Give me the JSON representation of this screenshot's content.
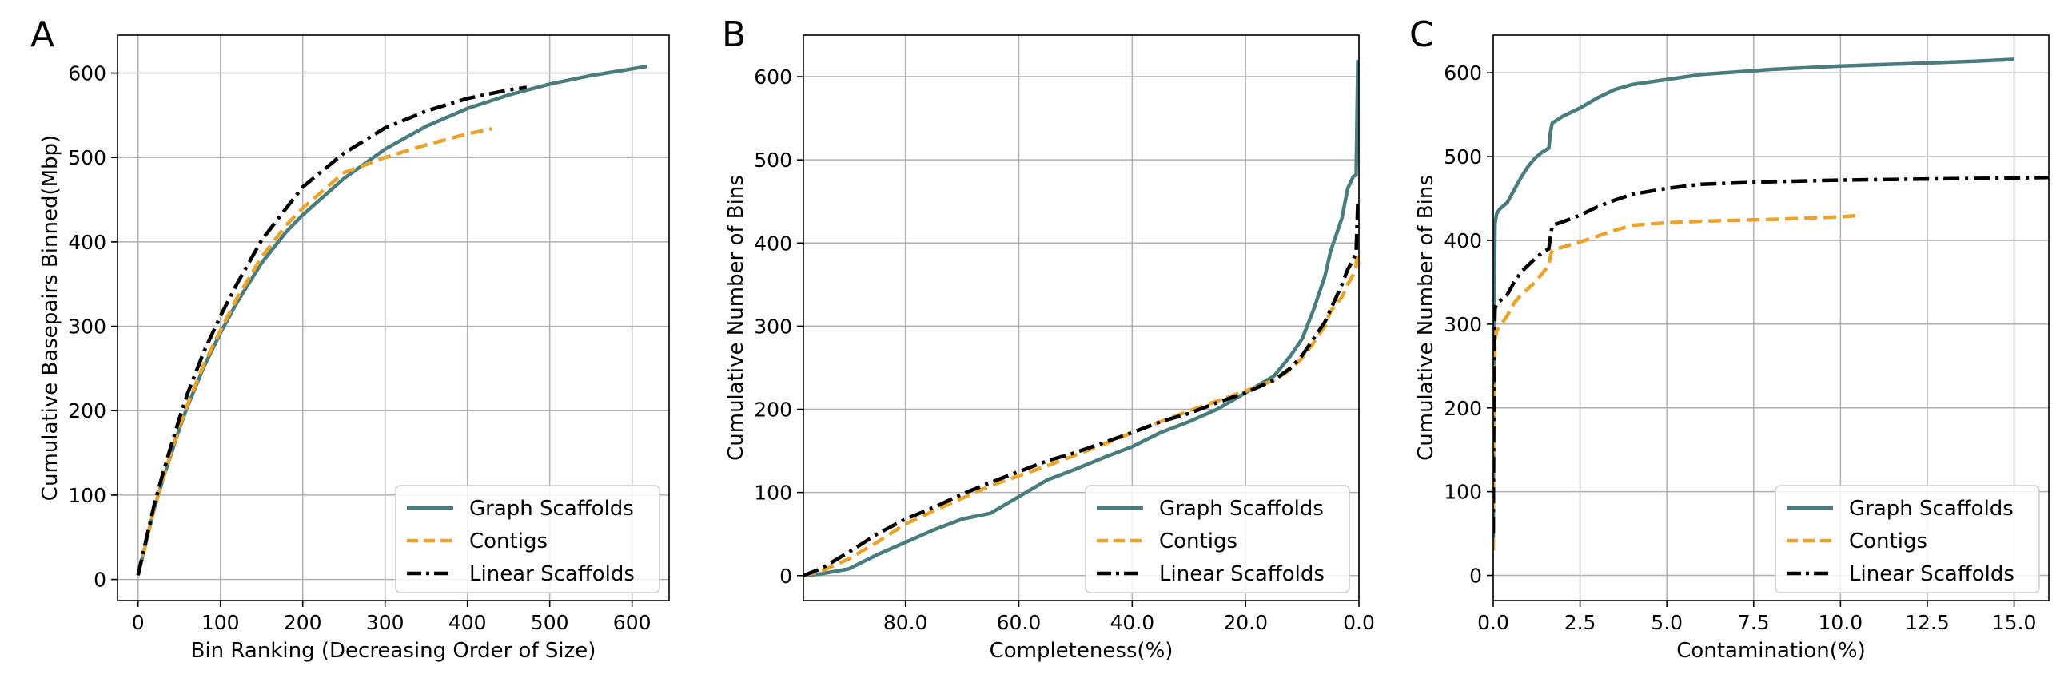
{
  "colors": {
    "graph_scaffolds": "#4a7c7e",
    "contigs": "#e8a42c",
    "linear_scaffolds": "#000000"
  },
  "chart_data": [
    {
      "type": "line",
      "panel_letter": "A",
      "xlabel": "Bin Ranking (Decreasing Order of Size)",
      "ylabel": "Cumulative Basepairs Binned(Mbp)",
      "xlim": [
        -25,
        645
      ],
      "ylim": [
        -25,
        645
      ],
      "xticks": [
        0,
        100,
        200,
        300,
        400,
        500,
        600
      ],
      "xtick_labels": [
        "0",
        "100",
        "200",
        "300",
        "400",
        "500",
        "600"
      ],
      "yticks": [
        0,
        100,
        200,
        300,
        400,
        500,
        600
      ],
      "ytick_labels": [
        "0",
        "100",
        "200",
        "300",
        "400",
        "500",
        "600"
      ],
      "grid": true,
      "legend_position": "lower-right",
      "series": [
        {
          "name": "Graph Scaffolds",
          "key": "graph_scaffolds",
          "style": "solid",
          "x": [
            0,
            10,
            20,
            30,
            40,
            50,
            60,
            80,
            100,
            120,
            150,
            180,
            200,
            250,
            300,
            350,
            400,
            450,
            500,
            550,
            600,
            618
          ],
          "y": [
            5,
            45,
            85,
            118,
            148,
            178,
            205,
            252,
            292,
            328,
            375,
            412,
            432,
            475,
            510,
            537,
            558,
            574,
            587,
            597,
            605,
            608
          ]
        },
        {
          "name": "Contigs",
          "key": "contigs",
          "style": "dashed",
          "x": [
            0,
            10,
            20,
            30,
            40,
            50,
            60,
            80,
            100,
            120,
            150,
            180,
            200,
            250,
            300,
            350,
            400,
            430
          ],
          "y": [
            5,
            45,
            85,
            118,
            150,
            180,
            207,
            255,
            295,
            333,
            382,
            420,
            440,
            482,
            500,
            515,
            528,
            534
          ]
        },
        {
          "name": "Linear Scaffolds",
          "key": "linear_scaffolds",
          "style": "dashdot",
          "x": [
            0,
            10,
            20,
            30,
            40,
            50,
            60,
            80,
            100,
            120,
            150,
            180,
            200,
            250,
            300,
            350,
            400,
            450,
            472
          ],
          "y": [
            5,
            48,
            90,
            125,
            158,
            190,
            220,
            270,
            312,
            350,
            402,
            440,
            465,
            505,
            535,
            555,
            570,
            580,
            583
          ]
        }
      ]
    },
    {
      "type": "line",
      "panel_letter": "B",
      "xlabel": "Completeness(%)",
      "ylabel": "Cumulative Number of Bins",
      "xlim": [
        98,
        0
      ],
      "ylim": [
        -30,
        650
      ],
      "xticks": [
        80,
        60,
        40,
        20,
        0
      ],
      "xtick_labels": [
        "80.0",
        "60.0",
        "40.0",
        "20.0",
        "0.0"
      ],
      "yticks": [
        0,
        100,
        200,
        300,
        400,
        500,
        600
      ],
      "ytick_labels": [
        "0",
        "100",
        "200",
        "300",
        "400",
        "500",
        "600"
      ],
      "grid": true,
      "legend_position": "lower-right",
      "series": [
        {
          "name": "Graph Scaffolds",
          "key": "graph_scaffolds",
          "style": "solid",
          "x": [
            98,
            95,
            90,
            85,
            80,
            75,
            70,
            65,
            60,
            55,
            50,
            45,
            40,
            35,
            30,
            25,
            20,
            15,
            12,
            10,
            8,
            6,
            5,
            3,
            2,
            1,
            0.5,
            0.2
          ],
          "y": [
            0,
            2,
            8,
            25,
            40,
            55,
            68,
            75,
            95,
            115,
            128,
            142,
            155,
            172,
            185,
            200,
            220,
            240,
            265,
            285,
            320,
            360,
            390,
            430,
            465,
            480,
            482,
            620
          ]
        },
        {
          "name": "Contigs",
          "key": "contigs",
          "style": "dashed",
          "x": [
            98,
            95,
            90,
            85,
            80,
            75,
            70,
            65,
            60,
            55,
            50,
            45,
            40,
            35,
            30,
            25,
            20,
            15,
            12,
            10,
            8,
            6,
            5,
            3,
            2,
            1,
            0.5,
            0.2
          ],
          "y": [
            0,
            5,
            20,
            40,
            62,
            78,
            93,
            108,
            120,
            132,
            145,
            158,
            172,
            185,
            198,
            210,
            222,
            235,
            248,
            262,
            280,
            300,
            318,
            335,
            350,
            362,
            372,
            415
          ]
        },
        {
          "name": "Linear Scaffolds",
          "key": "linear_scaffolds",
          "style": "dashdot",
          "x": [
            98,
            95,
            90,
            85,
            80,
            75,
            70,
            65,
            60,
            55,
            50,
            45,
            40,
            35,
            30,
            25,
            20,
            15,
            12,
            10,
            8,
            6,
            5,
            3,
            2,
            1,
            0.5,
            0.2
          ],
          "y": [
            0,
            8,
            28,
            50,
            68,
            82,
            98,
            112,
            125,
            138,
            148,
            160,
            172,
            185,
            195,
            208,
            220,
            235,
            250,
            265,
            285,
            305,
            320,
            350,
            368,
            380,
            390,
            450
          ]
        }
      ]
    },
    {
      "type": "line",
      "panel_letter": "C",
      "xlabel": "Contamination(%)",
      "ylabel": "Cumulative Number of Bins",
      "xlim": [
        0,
        16
      ],
      "ylim": [
        -30,
        645
      ],
      "xticks": [
        0,
        2.5,
        5,
        7.5,
        10,
        12.5,
        15
      ],
      "xtick_labels": [
        "0.0",
        "2.5",
        "5.0",
        "7.5",
        "10.0",
        "12.5",
        "15.0"
      ],
      "yticks": [
        0,
        100,
        200,
        300,
        400,
        500,
        600
      ],
      "ytick_labels": [
        "0",
        "100",
        "200",
        "300",
        "400",
        "500",
        "600"
      ],
      "grid": true,
      "legend_position": "lower-right",
      "series": [
        {
          "name": "Graph Scaffolds",
          "key": "graph_scaffolds",
          "style": "solid",
          "x": [
            0,
            0.02,
            0.05,
            0.1,
            0.2,
            0.4,
            0.6,
            0.8,
            1.0,
            1.2,
            1.4,
            1.6,
            1.65,
            1.7,
            2.0,
            2.5,
            3.0,
            3.5,
            4.0,
            5.0,
            6.0,
            8.0,
            10.0,
            12.0,
            14.0,
            15.0
          ],
          "y": [
            40,
            300,
            420,
            432,
            438,
            445,
            460,
            475,
            488,
            498,
            505,
            510,
            530,
            540,
            548,
            558,
            570,
            580,
            586,
            592,
            598,
            604,
            608,
            611,
            614,
            616
          ]
        },
        {
          "name": "Contigs",
          "key": "contigs",
          "style": "dashed",
          "x": [
            0,
            0.02,
            0.05,
            0.1,
            0.2,
            0.4,
            0.6,
            0.8,
            1.0,
            1.2,
            1.4,
            1.6,
            1.65,
            1.7,
            2.0,
            2.5,
            3.0,
            3.5,
            4.0,
            5.0,
            6.0,
            8.0,
            10.0,
            10.6
          ],
          "y": [
            30,
            200,
            280,
            292,
            298,
            310,
            325,
            335,
            342,
            350,
            360,
            370,
            382,
            388,
            392,
            398,
            405,
            412,
            418,
            421,
            423,
            425,
            428,
            430
          ]
        },
        {
          "name": "Linear Scaffolds",
          "key": "linear_scaffolds",
          "style": "dashdot",
          "x": [
            0,
            0.02,
            0.05,
            0.1,
            0.2,
            0.4,
            0.6,
            0.8,
            1.0,
            1.2,
            1.4,
            1.6,
            1.65,
            1.7,
            2.0,
            2.5,
            3.0,
            3.5,
            4.0,
            5.0,
            6.0,
            8.0,
            10.0,
            12.0,
            14.0,
            16.0
          ],
          "y": [
            50,
            250,
            318,
            325,
            328,
            335,
            350,
            362,
            370,
            378,
            385,
            390,
            405,
            418,
            422,
            430,
            440,
            448,
            455,
            462,
            467,
            470,
            472,
            473,
            474,
            475
          ]
        }
      ]
    }
  ]
}
